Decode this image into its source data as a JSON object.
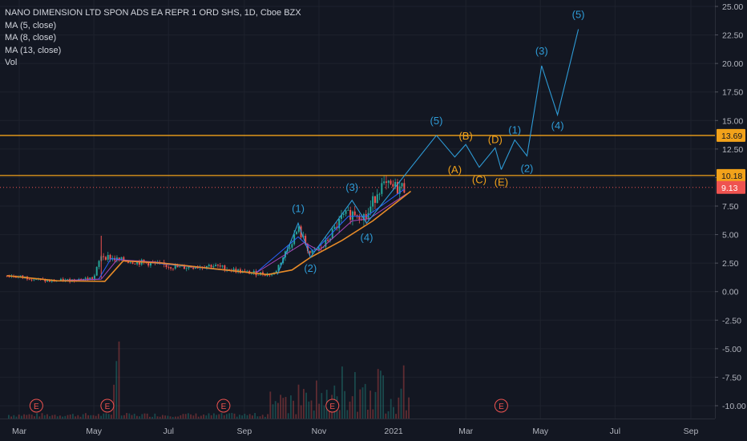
{
  "legend": {
    "title": "NANO DIMENSION LTD SPON ADS EA REPR 1 ORD SHS, 1D, Cboe BZX",
    "ma5": "MA (5, close)",
    "ma8": "MA (8, close)",
    "ma13": "MA (13, close)",
    "vol": "Vol"
  },
  "colors": {
    "background": "#131722",
    "grid": "#1e222d",
    "axis_text": "#b2b5be",
    "up": "#26a69a",
    "down": "#ef5350",
    "ma5": "#2962ff",
    "ma8": "#ab47bc",
    "ma13": "#e88b28",
    "wave_blue": "#2e9bd6",
    "wave_orange": "#f2a21a",
    "hline": "#f2a21a",
    "last_price": "#ef5350",
    "event": "#ef5350"
  },
  "chart_data": {
    "type": "candlestick",
    "symbol": "NANO DIMENSION LTD SPON ADS EA REPR 1 ORD SHS",
    "interval": "1D",
    "exchange": "Cboe BZX",
    "x_ticks": [
      "Mar",
      "May",
      "Jul",
      "Sep",
      "Nov",
      "2021",
      "Mar",
      "May",
      "Jul",
      "Sep"
    ],
    "y_ticks": [
      25.0,
      22.5,
      20.0,
      17.5,
      15.0,
      12.5,
      10.0,
      7.5,
      5.0,
      2.5,
      0.0,
      -2.5,
      -5.0,
      -7.5,
      -10.0
    ],
    "ylim": [
      -10.9,
      25.6
    ],
    "price_tags": [
      {
        "value": 13.69,
        "label": "13.69",
        "kind": "horizontal-line"
      },
      {
        "value": 10.18,
        "label": "10.18",
        "kind": "horizontal-line"
      },
      {
        "value": 9.13,
        "label": "9.13",
        "kind": "last-price"
      }
    ],
    "price_path": [
      {
        "x": "2020-02-20",
        "y": 1.4
      },
      {
        "x": "2020-03-10",
        "y": 1.2
      },
      {
        "x": "2020-03-25",
        "y": 0.9
      },
      {
        "x": "2020-04-10",
        "y": 1.0
      },
      {
        "x": "2020-05-01",
        "y": 1.2
      },
      {
        "x": "2020-05-07",
        "y": 3.2
      },
      {
        "x": "2020-05-20",
        "y": 2.8
      },
      {
        "x": "2020-06-15",
        "y": 2.5
      },
      {
        "x": "2020-07-10",
        "y": 2.1
      },
      {
        "x": "2020-08-05",
        "y": 2.3
      },
      {
        "x": "2020-09-01",
        "y": 1.7
      },
      {
        "x": "2020-09-25",
        "y": 1.5
      },
      {
        "x": "2020-10-05",
        "y": 3.5
      },
      {
        "x": "2020-10-15",
        "y": 5.5
      },
      {
        "x": "2020-10-25",
        "y": 3.3
      },
      {
        "x": "2020-11-05",
        "y": 4.0
      },
      {
        "x": "2020-11-20",
        "y": 6.5
      },
      {
        "x": "2020-12-01",
        "y": 7.0
      },
      {
        "x": "2020-12-10",
        "y": 6.5
      },
      {
        "x": "2020-12-20",
        "y": 9.2
      },
      {
        "x": "2020-12-31",
        "y": 9.1
      },
      {
        "x": "2021-01-10",
        "y": 9.13
      }
    ],
    "ma_series": [
      {
        "name": "MA (5, close)",
        "values": [
          {
            "x": "2020-02-20",
            "y": 1.4
          },
          {
            "x": "2020-04-01",
            "y": 0.95
          },
          {
            "x": "2020-05-05",
            "y": 1.1
          },
          {
            "x": "2020-05-15",
            "y": 2.9
          },
          {
            "x": "2020-06-20",
            "y": 2.5
          },
          {
            "x": "2020-09-10",
            "y": 1.6
          },
          {
            "x": "2020-10-15",
            "y": 4.8
          },
          {
            "x": "2020-10-28",
            "y": 3.5
          },
          {
            "x": "2020-11-25",
            "y": 6.6
          },
          {
            "x": "2020-12-10",
            "y": 6.6
          },
          {
            "x": "2021-01-10",
            "y": 9.0
          }
        ]
      },
      {
        "name": "MA (8, close)",
        "values": [
          {
            "x": "2020-02-20",
            "y": 1.4
          },
          {
            "x": "2020-04-01",
            "y": 0.95
          },
          {
            "x": "2020-05-07",
            "y": 1.1
          },
          {
            "x": "2020-05-20",
            "y": 2.8
          },
          {
            "x": "2020-06-20",
            "y": 2.6
          },
          {
            "x": "2020-09-10",
            "y": 1.6
          },
          {
            "x": "2020-10-20",
            "y": 4.3
          },
          {
            "x": "2020-11-01",
            "y": 3.6
          },
          {
            "x": "2020-11-28",
            "y": 6.2
          },
          {
            "x": "2020-12-12",
            "y": 6.4
          },
          {
            "x": "2021-01-12",
            "y": 8.6
          }
        ]
      },
      {
        "name": "MA (13, close)",
        "values": [
          {
            "x": "2020-02-20",
            "y": 1.4
          },
          {
            "x": "2020-04-01",
            "y": 0.95
          },
          {
            "x": "2020-05-10",
            "y": 0.9
          },
          {
            "x": "2020-05-25",
            "y": 2.7
          },
          {
            "x": "2020-06-25",
            "y": 2.5
          },
          {
            "x": "2020-09-20",
            "y": 1.5
          },
          {
            "x": "2020-10-10",
            "y": 1.9
          },
          {
            "x": "2020-10-25",
            "y": 3.0
          },
          {
            "x": "2020-11-20",
            "y": 4.5
          },
          {
            "x": "2020-12-15",
            "y": 6.2
          },
          {
            "x": "2021-01-15",
            "y": 8.8
          }
        ]
      }
    ],
    "elliott_waves": {
      "impulse_1": [
        {
          "label": "(1)",
          "x": "2020-10-15",
          "y": 6.0
        },
        {
          "label": "(2)",
          "x": "2020-10-25",
          "y": 3.0
        },
        {
          "label": "(3)",
          "x": "2020-11-28",
          "y": 8.0
        },
        {
          "label": "(4)",
          "x": "2020-12-10",
          "y": 6.0
        },
        {
          "label": "(5)",
          "x": "2021-02-05",
          "y": 13.7
        }
      ],
      "correction": [
        {
          "label": "(A)",
          "x": "2021-02-20",
          "y": 11.8
        },
        {
          "label": "(B)",
          "x": "2021-03-01",
          "y": 12.9
        },
        {
          "label": "(C)",
          "x": "2021-03-12",
          "y": 10.9
        },
        {
          "label": "(D)",
          "x": "2021-03-25",
          "y": 12.6
        },
        {
          "label": "(E)",
          "x": "2021-03-30",
          "y": 10.7
        }
      ],
      "impulse_2": [
        {
          "label": "(1)",
          "x": "2021-04-10",
          "y": 13.3
        },
        {
          "label": "(2)",
          "x": "2021-04-20",
          "y": 11.9
        },
        {
          "label": "(3)",
          "x": "2021-05-02",
          "y": 19.8
        },
        {
          "label": "(4)",
          "x": "2021-05-15",
          "y": 15.5
        },
        {
          "label": "(5)",
          "x": "2021-06-01",
          "y": 23.0
        }
      ]
    },
    "events": [
      {
        "label": "E",
        "x": "2020-03-15"
      },
      {
        "label": "E",
        "x": "2020-05-12"
      },
      {
        "label": "E",
        "x": "2020-08-15"
      },
      {
        "label": "E",
        "x": "2020-11-12"
      },
      {
        "label": "E",
        "x": "2021-03-30"
      }
    ]
  }
}
